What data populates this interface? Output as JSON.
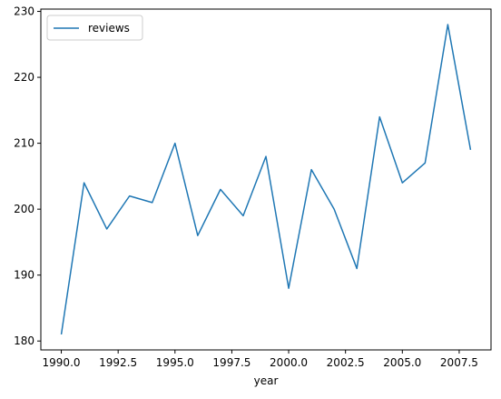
{
  "chart_data": {
    "type": "line",
    "title": "",
    "xlabel": "year",
    "ylabel": "",
    "x": [
      1990,
      1991,
      1992,
      1993,
      1994,
      1995,
      1996,
      1997,
      1998,
      1999,
      2000,
      2001,
      2002,
      2003,
      2004,
      2005,
      2006,
      2007,
      2008
    ],
    "series": [
      {
        "name": "reviews",
        "color": "#1f77b4",
        "values": [
          181,
          204,
          197,
          202,
          201,
          210,
          196,
          203,
          199,
          208,
          188,
          206,
          200,
          191,
          214,
          204,
          207,
          228,
          209
        ]
      }
    ],
    "xlim": [
      1989.1,
      2008.9
    ],
    "ylim": [
      178.65,
      230.35
    ],
    "xticks": [
      "1990.0",
      "1992.5",
      "1995.0",
      "1997.5",
      "2000.0",
      "2002.5",
      "2005.0",
      "2007.5"
    ],
    "xtick_values": [
      1990,
      1992.5,
      1995,
      1997.5,
      2000,
      2002.5,
      2005,
      2007.5
    ],
    "yticks": [
      "180",
      "190",
      "200",
      "210",
      "220",
      "230"
    ],
    "ytick_values": [
      180,
      190,
      200,
      210,
      220,
      230
    ],
    "grid": false,
    "legend": "top-left"
  }
}
